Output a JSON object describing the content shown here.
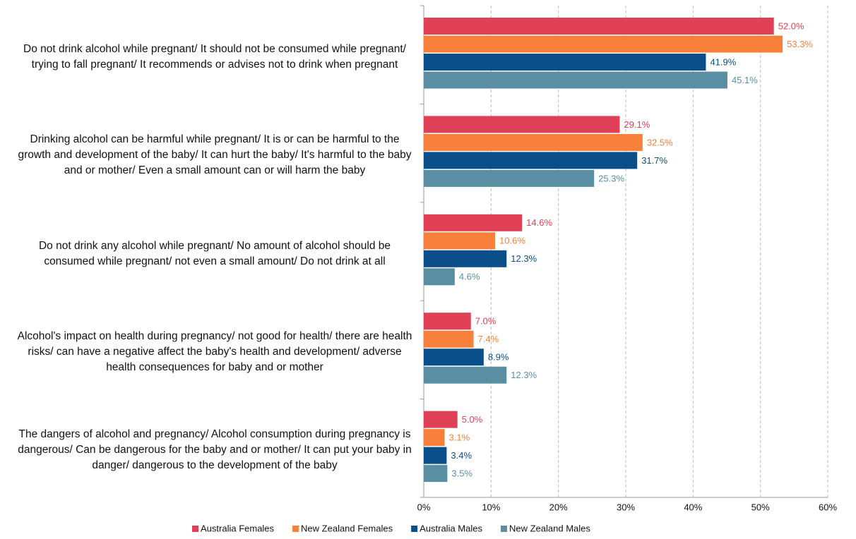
{
  "chart_data": {
    "type": "bar",
    "orientation": "horizontal",
    "categories": [
      "Do not drink alcohol while pregnant/ It should not be consumed while pregnant/ trying to fall pregnant/ It recommends or advises not to drink when pregnant",
      "Drinking alcohol can be harmful while pregnant/ It is or can be harmful to the growth and development of the baby/ It can hurt the baby/ It's harmful to the baby and or mother/ Even a small amount can or will harm the baby",
      "Do not drink any alcohol while pregnant/ No amount of alcohol should be consumed while pregnant/ not even a small amount/ Do not drink at all",
      "Alcohol's impact on health during pregnancy/ not good for health/ there are health risks/ can have a negative affect the baby's health and development/ adverse health consequences for baby and or mother",
      "The dangers of alcohol and pregnancy/ Alcohol consumption during pregnancy is dangerous/ Can be dangerous for the baby and or mother/ It can put your baby in danger/ dangerous to the development of the baby"
    ],
    "series": [
      {
        "name": "Australia Females",
        "color": "#e04055",
        "values": [
          52.0,
          29.1,
          14.6,
          7.0,
          5.0
        ],
        "value_labels": [
          "52.0%",
          "29.1%",
          "14.6%",
          "7.0%",
          "5.0%"
        ]
      },
      {
        "name": "New Zealand Females",
        "color": "#f7813a",
        "values": [
          53.3,
          32.5,
          10.6,
          7.4,
          3.1
        ],
        "value_labels": [
          "53.3%",
          "32.5%",
          "10.6%",
          "7.4%",
          "3.1%"
        ]
      },
      {
        "name": "Australia Males",
        "color": "#0b4f8a",
        "values": [
          41.9,
          31.7,
          12.3,
          8.9,
          3.4
        ],
        "value_labels": [
          "41.9%",
          "31.7%",
          "12.3%",
          "8.9%",
          "3.4%"
        ]
      },
      {
        "name": "New Zealand Males",
        "color": "#5a8fa3",
        "values": [
          45.1,
          25.3,
          4.6,
          12.3,
          3.5
        ],
        "value_labels": [
          "45.1%",
          "25.3%",
          "4.6%",
          "12.3%",
          "3.5%"
        ]
      }
    ],
    "xlim": [
      0,
      60
    ],
    "xticks": [
      {
        "value": 0,
        "label": "0%"
      },
      {
        "value": 10,
        "label": "10%"
      },
      {
        "value": 20,
        "label": "20%"
      },
      {
        "value": 30,
        "label": "30%"
      },
      {
        "value": 40,
        "label": "40%"
      },
      {
        "value": 50,
        "label": "50%"
      },
      {
        "value": 60,
        "label": "60%"
      }
    ],
    "grid": true,
    "legend": "bottom"
  }
}
